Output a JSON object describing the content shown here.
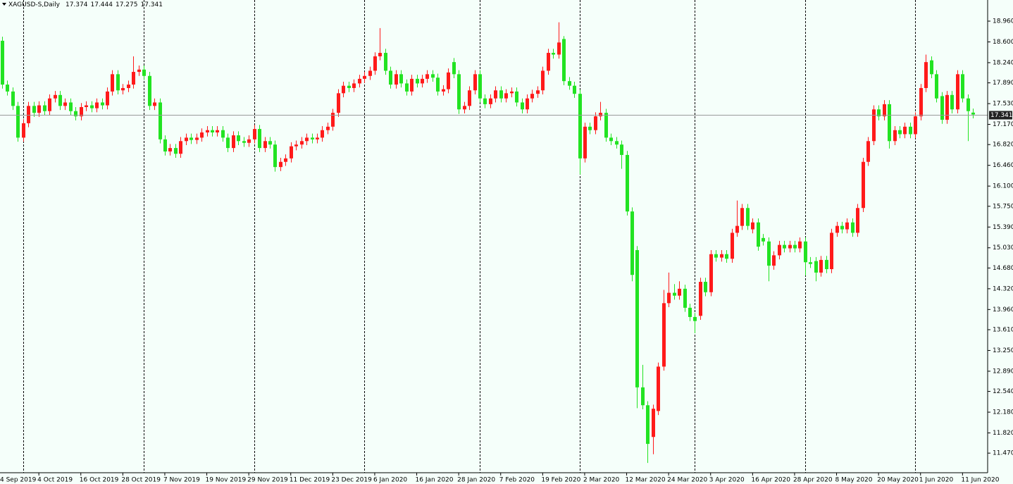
{
  "chart_data": {
    "type": "candlestick",
    "title": "XAGUSD-S,Daily",
    "categories": [
      "4 Sep 2019",
      null,
      null,
      null,
      null,
      null,
      null,
      null,
      "4 Oct 2019",
      null,
      null,
      null,
      null,
      null,
      null,
      null,
      "16 Oct 2019",
      null,
      null,
      null,
      null,
      null,
      null,
      null,
      "28 Oct 2019",
      null,
      null,
      null,
      null,
      null,
      null,
      null,
      "7 Nov 2019",
      null,
      null,
      null,
      null,
      null,
      null,
      null,
      "19 Nov 2019",
      null,
      null,
      null,
      null,
      null,
      null,
      null,
      "29 Nov 2019",
      null,
      null,
      null,
      null,
      null,
      null,
      null,
      "11 Dec 2019",
      null,
      null,
      null,
      null,
      null,
      null,
      null,
      "23 Dec 2019",
      null,
      null,
      null,
      null,
      null,
      null,
      null,
      "6 Jan 2020",
      null,
      null,
      null,
      null,
      null,
      null,
      null,
      "16 Jan 2020",
      null,
      null,
      null,
      null,
      null,
      null,
      null,
      "28 Jan 2020",
      null,
      null,
      null,
      null,
      null,
      null,
      null,
      "7 Feb 2020",
      null,
      null,
      null,
      null,
      null,
      null,
      null,
      "19 Feb 2020",
      null,
      null,
      null,
      null,
      null,
      null,
      null,
      "2 Mar 2020",
      null,
      null,
      null,
      null,
      null,
      null,
      null,
      "12 Mar 2020",
      null,
      null,
      null,
      null,
      null,
      null,
      null,
      "24 Mar 2020",
      null,
      null,
      null,
      null,
      null,
      null,
      null,
      "3 Apr 2020",
      null,
      null,
      null,
      null,
      null,
      null,
      null,
      "16 Apr 2020",
      null,
      null,
      null,
      null,
      null,
      null,
      null,
      "28 Apr 2020",
      null,
      null,
      null,
      null,
      null,
      null,
      null,
      "8 May 2020",
      null,
      null,
      null,
      null,
      null,
      null,
      null,
      "20 May 2020",
      null,
      null,
      null,
      null,
      null,
      null,
      null,
      "1 Jun 2020",
      null,
      null,
      null,
      null,
      null,
      null,
      null,
      "11 Jun 2020",
      null,
      null
    ],
    "open": [
      18.4,
      18.62,
      17.86,
      17.74,
      17.49,
      16.94,
      17.19,
      17.49,
      17.37,
      17.5,
      17.4,
      17.62,
      17.68,
      17.49,
      17.55,
      17.4,
      17.31,
      17.47,
      17.5,
      17.45,
      17.55,
      17.5,
      17.74,
      18.04,
      17.76,
      17.8,
      17.86,
      18.08,
      18.12,
      18.01,
      17.49,
      17.55,
      16.91,
      16.7,
      16.76,
      16.66,
      16.88,
      16.94,
      16.9,
      16.94,
      17.03,
      17.07,
      17.03,
      17.07,
      16.94,
      16.76,
      16.98,
      16.88,
      16.85,
      16.91,
      17.09,
      16.76,
      16.88,
      16.82,
      16.43,
      16.52,
      16.58,
      16.79,
      16.82,
      16.88,
      16.94,
      16.91,
      16.94,
      17.07,
      17.13,
      17.37,
      17.71,
      17.84,
      17.8,
      17.88,
      17.96,
      18.01,
      18.1,
      18.35,
      18.41,
      18.1,
      17.86,
      18.04,
      17.88,
      17.74,
      17.96,
      17.88,
      17.96,
      18.04,
      17.98,
      17.74,
      17.78,
      18.25,
      18.04,
      17.43,
      17.49,
      17.76,
      18.04,
      17.62,
      17.52,
      17.62,
      17.76,
      17.62,
      17.71,
      17.74,
      17.55,
      17.43,
      17.62,
      17.7,
      17.76,
      18.1,
      18.41,
      18.38,
      18.65,
      17.92,
      17.84,
      17.7,
      16.58,
      17.13,
      17.07,
      17.31,
      17.37,
      16.94,
      16.88,
      16.82,
      16.64,
      15.66,
      14.99,
      12.61,
      12.3,
      11.75,
      12.2,
      12.97,
      14.07,
      14.25,
      14.2,
      14.32,
      13.99,
      13.83,
      13.85,
      14.44,
      14.26,
      14.92,
      14.86,
      14.92,
      14.84,
      15.29,
      15.41,
      15.72,
      15.35,
      15.47,
      15.2,
      15.14,
      14.72,
      14.9,
      15.08,
      15.02,
      15.08,
      15.02,
      15.14,
      14.78,
      14.8,
      14.6,
      14.82,
      14.66,
      15.29,
      15.41,
      15.35,
      15.47,
      15.29,
      15.72,
      16.52,
      16.88,
      17.43,
      17.31,
      17.52,
      16.88,
      17.07,
      17.0,
      17.13,
      17.0,
      17.31,
      17.8,
      18.28,
      18.04,
      17.66,
      17.25,
      17.68,
      17.43,
      18.04,
      17.62,
      17.374
    ],
    "high": [
      18.7,
      18.69,
      17.93,
      17.81,
      17.56,
      17.26,
      17.56,
      17.56,
      17.57,
      17.57,
      17.69,
      17.75,
      17.75,
      17.62,
      17.62,
      17.47,
      17.54,
      17.57,
      17.57,
      17.62,
      17.62,
      17.81,
      18.11,
      18.11,
      17.87,
      17.93,
      18.35,
      18.19,
      18.19,
      18.08,
      17.62,
      17.62,
      16.98,
      16.83,
      16.83,
      16.95,
      17.01,
      17.01,
      17.01,
      17.1,
      17.14,
      17.14,
      17.14,
      17.14,
      17.01,
      17.05,
      17.05,
      16.95,
      16.98,
      17.16,
      17.16,
      16.95,
      16.95,
      16.89,
      16.59,
      16.65,
      16.86,
      16.89,
      16.95,
      17.01,
      17.01,
      17.01,
      17.14,
      17.2,
      17.44,
      17.78,
      17.91,
      17.91,
      17.95,
      18.03,
      18.08,
      18.17,
      18.42,
      18.84,
      18.48,
      18.17,
      18.11,
      18.11,
      17.95,
      18.03,
      18.03,
      18.03,
      18.11,
      18.11,
      18.05,
      17.85,
      18.14,
      18.32,
      18.11,
      17.56,
      17.83,
      18.11,
      18.11,
      17.69,
      17.69,
      17.83,
      17.83,
      17.78,
      17.81,
      17.81,
      17.62,
      17.69,
      17.77,
      17.83,
      18.17,
      18.48,
      18.48,
      18.94,
      18.7,
      17.99,
      17.91,
      17.77,
      17.2,
      17.2,
      17.38,
      17.56,
      17.44,
      17.01,
      16.95,
      16.89,
      16.71,
      15.73,
      15.06,
      13.0,
      12.37,
      12.31,
      13.04,
      14.3,
      14.6,
      14.4,
      14.45,
      14.39,
      14.06,
      13.9,
      14.51,
      14.51,
      14.99,
      14.99,
      14.99,
      14.99,
      15.36,
      15.85,
      15.79,
      15.79,
      15.54,
      15.54,
      15.27,
      15.21,
      14.97,
      15.15,
      15.15,
      15.15,
      15.15,
      15.21,
      15.21,
      14.87,
      14.87,
      14.89,
      14.89,
      15.36,
      15.48,
      15.48,
      15.54,
      15.54,
      15.79,
      16.59,
      16.95,
      17.5,
      17.5,
      17.59,
      17.59,
      17.14,
      17.14,
      17.2,
      17.2,
      17.38,
      17.87,
      18.38,
      18.35,
      18.11,
      17.73,
      17.75,
      17.75,
      18.11,
      18.11,
      17.69,
      17.444
    ],
    "low": [
      18.33,
      17.79,
      17.67,
      17.42,
      16.87,
      16.87,
      17.12,
      17.3,
      17.3,
      17.33,
      17.33,
      17.55,
      17.42,
      17.42,
      17.33,
      17.24,
      17.24,
      17.4,
      17.38,
      17.38,
      17.43,
      17.43,
      17.67,
      17.69,
      17.69,
      17.73,
      17.79,
      18.01,
      17.94,
      17.42,
      17.42,
      16.84,
      16.63,
      16.63,
      16.59,
      16.59,
      16.81,
      16.83,
      16.83,
      16.87,
      16.96,
      16.96,
      16.96,
      16.87,
      16.69,
      16.69,
      16.81,
      16.78,
      16.78,
      16.84,
      16.69,
      16.69,
      16.75,
      16.35,
      16.36,
      16.45,
      16.51,
      16.72,
      16.75,
      16.81,
      16.84,
      16.84,
      16.87,
      17.0,
      17.06,
      17.3,
      17.64,
      17.73,
      17.73,
      17.81,
      17.89,
      17.94,
      18.03,
      18.28,
      18.03,
      17.79,
      17.79,
      17.81,
      17.67,
      17.67,
      17.81,
      17.81,
      17.89,
      17.91,
      17.67,
      17.67,
      17.71,
      17.97,
      17.35,
      17.36,
      17.42,
      17.69,
      17.55,
      17.45,
      17.45,
      17.55,
      17.55,
      17.55,
      17.64,
      17.48,
      17.36,
      17.36,
      17.55,
      17.63,
      17.69,
      18.03,
      18.31,
      18.31,
      17.85,
      17.77,
      17.63,
      16.3,
      16.51,
      17.0,
      17.0,
      17.24,
      16.87,
      16.81,
      16.75,
      16.4,
      15.59,
      14.45,
      12.25,
      12.23,
      11.3,
      11.45,
      12.13,
      12.9,
      14.0,
      14.13,
      14.13,
      13.92,
      13.76,
      13.55,
      13.78,
      14.19,
      14.19,
      14.79,
      14.79,
      14.77,
      14.77,
      15.22,
      15.34,
      15.34,
      15.28,
      14.98,
      15.07,
      14.45,
      14.65,
      14.83,
      14.95,
      14.95,
      14.95,
      14.95,
      14.55,
      14.68,
      14.45,
      14.53,
      14.59,
      14.59,
      15.22,
      15.28,
      15.28,
      15.22,
      15.22,
      15.65,
      16.45,
      16.81,
      17.24,
      17.24,
      16.75,
      16.81,
      16.93,
      16.93,
      16.93,
      16.93,
      17.24,
      17.73,
      17.97,
      17.55,
      17.18,
      17.18,
      17.36,
      17.36,
      17.55,
      16.88,
      17.275
    ],
    "close": [
      18.62,
      17.86,
      17.74,
      17.49,
      16.94,
      17.19,
      17.49,
      17.37,
      17.5,
      17.4,
      17.62,
      17.68,
      17.49,
      17.55,
      17.4,
      17.31,
      17.47,
      17.5,
      17.45,
      17.55,
      17.5,
      17.74,
      18.04,
      17.76,
      17.8,
      17.86,
      18.08,
      18.12,
      18.01,
      17.49,
      17.55,
      16.91,
      16.7,
      16.76,
      16.66,
      16.88,
      16.94,
      16.9,
      16.94,
      17.03,
      17.07,
      17.03,
      17.07,
      16.94,
      16.76,
      16.98,
      16.88,
      16.85,
      16.91,
      17.09,
      16.76,
      16.88,
      16.82,
      16.43,
      16.52,
      16.58,
      16.79,
      16.82,
      16.88,
      16.94,
      16.91,
      16.94,
      17.07,
      17.13,
      17.37,
      17.71,
      17.84,
      17.8,
      17.88,
      17.96,
      18.01,
      18.1,
      18.35,
      18.41,
      18.1,
      17.86,
      18.04,
      17.88,
      17.74,
      17.96,
      17.88,
      17.96,
      18.04,
      17.98,
      17.74,
      17.78,
      18.07,
      18.04,
      17.43,
      17.49,
      17.76,
      18.04,
      17.62,
      17.52,
      17.62,
      17.76,
      17.62,
      17.71,
      17.74,
      17.55,
      17.43,
      17.62,
      17.7,
      17.76,
      18.1,
      18.41,
      18.38,
      18.59,
      17.92,
      17.84,
      17.7,
      16.58,
      17.13,
      17.07,
      17.31,
      17.37,
      16.94,
      16.88,
      16.82,
      16.64,
      15.66,
      14.56,
      12.61,
      12.3,
      11.63,
      12.24,
      12.97,
      14.07,
      14.25,
      14.2,
      14.32,
      13.99,
      13.83,
      13.76,
      14.44,
      14.26,
      14.92,
      14.86,
      14.92,
      14.84,
      15.29,
      15.41,
      15.72,
      15.41,
      15.47,
      15.05,
      15.14,
      14.72,
      14.9,
      15.08,
      15.02,
      15.08,
      15.02,
      15.14,
      14.78,
      14.75,
      14.6,
      14.82,
      14.66,
      15.29,
      15.41,
      15.35,
      15.47,
      15.29,
      15.72,
      16.52,
      16.88,
      17.43,
      17.31,
      17.52,
      16.88,
      17.07,
      17.0,
      17.13,
      17.0,
      17.31,
      17.8,
      18.25,
      18.04,
      17.62,
      17.25,
      17.68,
      17.43,
      18.04,
      17.62,
      17.4,
      17.341
    ],
    "up_color": "#ff1a1a",
    "down_color": "#22e322",
    "ylim": [
      11.13,
      19.18
    ],
    "yticks": [
      {
        "value": 18.96,
        "label": "18.960"
      },
      {
        "value": 18.6,
        "label": "18.600"
      },
      {
        "value": 18.24,
        "label": "18.240"
      },
      {
        "value": 17.89,
        "label": "17.890"
      },
      {
        "value": 17.53,
        "label": "17.530"
      },
      {
        "value": 17.17,
        "label": "17.170"
      },
      {
        "value": 16.82,
        "label": "16.820"
      },
      {
        "value": 16.46,
        "label": "16.460"
      },
      {
        "value": 16.1,
        "label": "16.100"
      },
      {
        "value": 15.75,
        "label": "15.750"
      },
      {
        "value": 15.39,
        "label": "15.390"
      },
      {
        "value": 15.03,
        "label": "15.030"
      },
      {
        "value": 14.68,
        "label": "14.680"
      },
      {
        "value": 14.32,
        "label": "14.320"
      },
      {
        "value": 13.96,
        "label": "13.960"
      },
      {
        "value": 13.61,
        "label": "13.610"
      },
      {
        "value": 13.25,
        "label": "13.250"
      },
      {
        "value": 12.89,
        "label": "12.890"
      },
      {
        "value": 12.54,
        "label": "12.540"
      },
      {
        "value": 12.18,
        "label": "12.180"
      },
      {
        "value": 11.82,
        "label": "11.820"
      },
      {
        "value": 11.47,
        "label": "11.470"
      }
    ],
    "period_separators": [
      5,
      28,
      49,
      70,
      92,
      111,
      133,
      154,
      175
    ],
    "price_line": true,
    "grid": false
  }
}
